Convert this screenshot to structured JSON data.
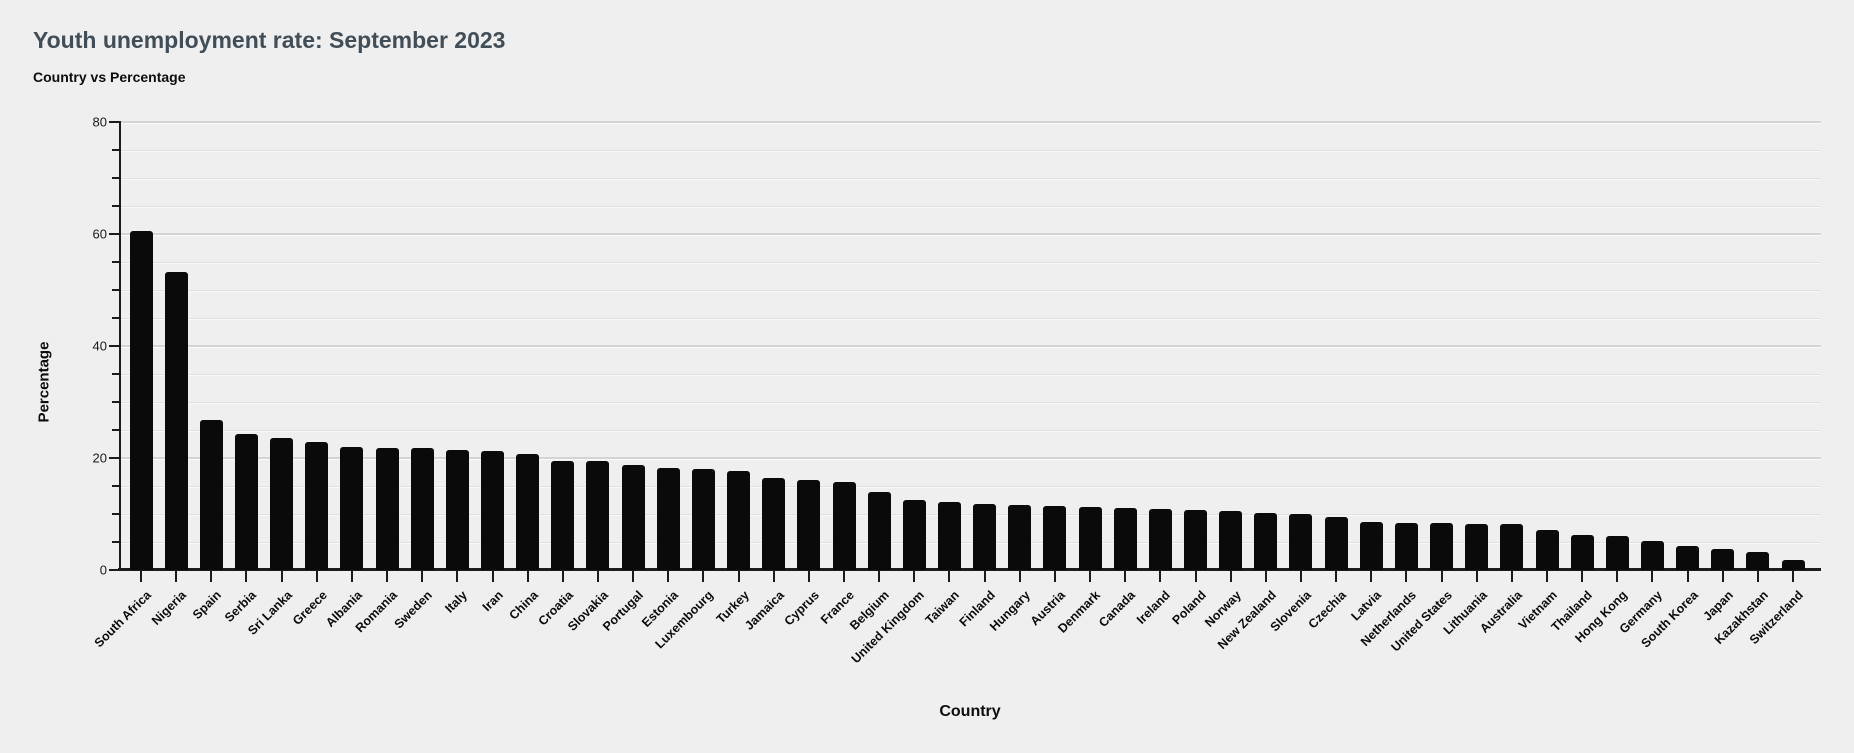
{
  "page": {
    "title": "Youth unemployment rate: September 2023",
    "subtitle": "Country vs Percentage"
  },
  "chart_data": {
    "type": "bar",
    "title": "Youth unemployment rate: September 2023",
    "subtitle": "Country vs Percentage",
    "xlabel": "Country",
    "ylabel": "Percentage",
    "ylim": [
      0,
      80
    ],
    "y_major_ticks": [
      0,
      20,
      40,
      60,
      80
    ],
    "y_minor_tick_step": 5,
    "grid": "horizontal-major-and-minor",
    "legend": "none",
    "bar_color": "#0a0a0a",
    "background_color": "#efefef",
    "categories": [
      "South Africa",
      "Nigeria",
      "Spain",
      "Serbia",
      "Sri Lanka",
      "Greece",
      "Albania",
      "Romania",
      "Sweden",
      "Italy",
      "Iran",
      "China",
      "Croatia",
      "Slovakia",
      "Portugal",
      "Estonia",
      "Luxembourg",
      "Turkey",
      "Jamaica",
      "Cyprus",
      "France",
      "Belgium",
      "United Kingdom",
      "Taiwan",
      "Finland",
      "Hungary",
      "Austria",
      "Denmark",
      "Canada",
      "Ireland",
      "Poland",
      "Norway",
      "New Zealand",
      "Slovenia",
      "Czechia",
      "Latvia",
      "Netherlands",
      "United States",
      "Lithuania",
      "Australia",
      "Vietnam",
      "Thailand",
      "Hong Kong",
      "Germany",
      "South Korea",
      "Japan",
      "Kazakhstan",
      "Switzerland"
    ],
    "values": [
      60.5,
      53.2,
      26.7,
      24.2,
      23.5,
      22.8,
      21.9,
      21.8,
      21.7,
      21.5,
      21.2,
      20.8,
      19.5,
      19.4,
      18.7,
      18.2,
      18.0,
      17.6,
      16.4,
      16.0,
      15.8,
      13.9,
      12.5,
      12.1,
      11.8,
      11.6,
      11.4,
      11.2,
      11.1,
      10.9,
      10.8,
      10.5,
      10.2,
      10.0,
      9.4,
      8.5,
      8.4,
      8.4,
      8.3,
      8.2,
      7.2,
      6.3,
      6.0,
      5.1,
      4.2,
      3.8,
      3.2,
      1.8
    ]
  },
  "colors": {
    "title": "#414e58",
    "text": "#0d0d0d",
    "axis": "#1b1b1b",
    "grid_major": "#d4d4d4",
    "grid_minor": "#e1e1e1"
  }
}
